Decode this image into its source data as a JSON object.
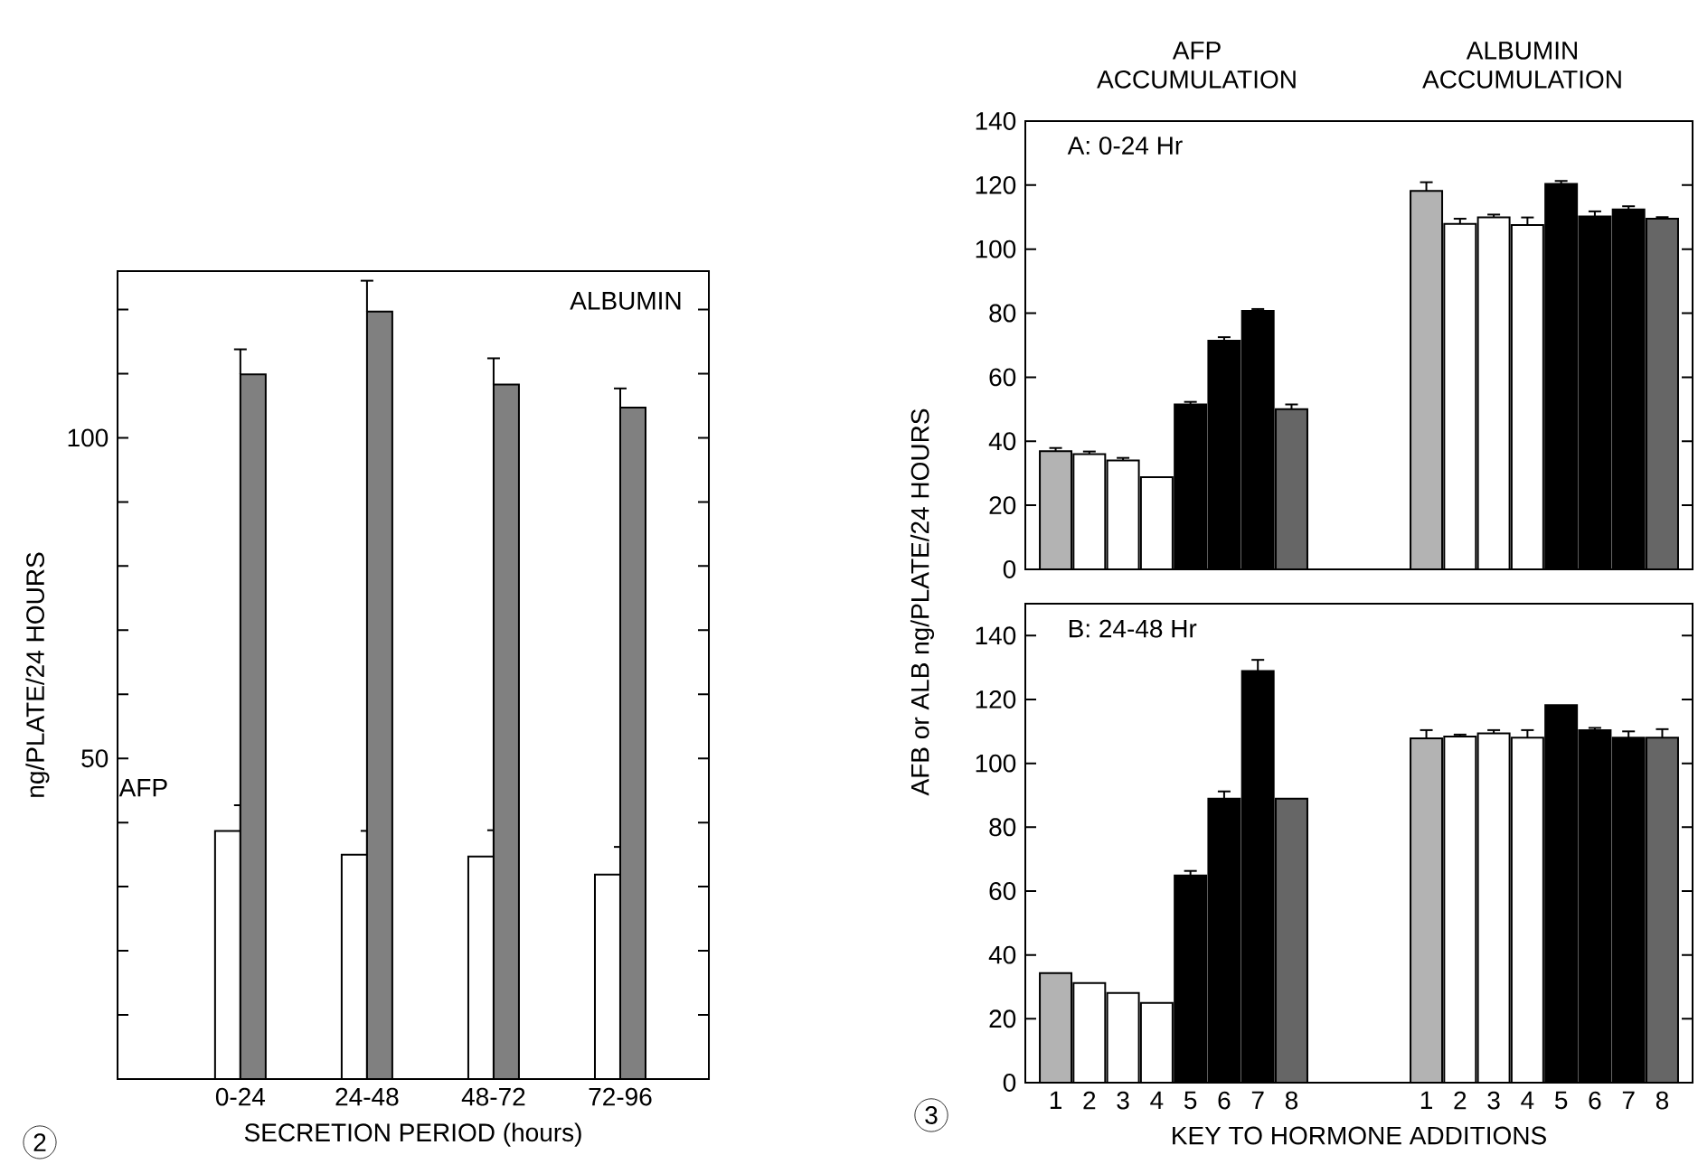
{
  "chart_data": [
    {
      "type": "bar",
      "ylabel": "ng/PLATE/24 HOURS",
      "xlabel": "SECRETION PERIOD (hours)",
      "categories": [
        "0-24",
        "24-48",
        "48-72",
        "72-96"
      ],
      "series": [
        {
          "name": "AFP",
          "color": "#ffffff",
          "values": [
            38.7,
            35.0,
            34.7,
            31.9
          ],
          "errors": [
            4.0,
            3.7,
            4.1,
            4.3
          ]
        },
        {
          "name": "ALBUMIN",
          "color": "#808080",
          "values": [
            109.9,
            119.7,
            108.3,
            104.7
          ],
          "errors": [
            3.9,
            4.8,
            4.1,
            3.0
          ]
        }
      ],
      "ylim": [
        0,
        126
      ],
      "yticks": [
        {
          "value": 10,
          "label": null
        },
        {
          "value": 20,
          "label": null
        },
        {
          "value": 30,
          "label": null
        },
        {
          "value": 40,
          "label": null
        },
        50,
        {
          "value": 60,
          "label": null
        },
        {
          "value": 70,
          "label": null
        },
        {
          "value": 80,
          "label": null
        },
        {
          "value": 90,
          "label": null
        },
        100,
        {
          "value": 110,
          "label": null
        },
        {
          "value": 120,
          "label": null
        }
      ],
      "annotations": [
        "2"
      ]
    },
    {
      "type": "bar",
      "title": "A: 0-24 Hr",
      "categories": [
        "1",
        "2",
        "3",
        "4",
        "5",
        "6",
        "7",
        "8",
        null,
        null,
        null,
        "1",
        "2",
        "3",
        "4",
        "5",
        "6",
        "7",
        "8"
      ],
      "values": [
        36.9,
        36.0,
        34.0,
        28.8,
        51.5,
        71.4,
        80.7,
        50.0,
        null,
        null,
        null,
        118.2,
        107.9,
        109.9,
        107.5,
        120.4,
        110.2,
        112.4,
        109.5
      ],
      "colors": [
        "#b3b3b3",
        "#ffffff",
        "#ffffff",
        "#ffffff",
        "#000000",
        "#000000",
        "#000000",
        "#666666",
        null,
        null,
        null,
        "#b3b3b3",
        "#ffffff",
        "#ffffff",
        "#ffffff",
        "#000000",
        "#000000",
        "#000000",
        "#666666"
      ],
      "errors": [
        1.0,
        0.8,
        0.8,
        null,
        0.8,
        1.1,
        0.6,
        1.5,
        null,
        null,
        null,
        2.7,
        1.6,
        0.9,
        2.4,
        0.9,
        1.6,
        1.0,
        0.5
      ],
      "ylim": [
        0,
        140
      ],
      "yticks": [
        0,
        20,
        40,
        60,
        80,
        100,
        120,
        140
      ],
      "tick_labels": "y",
      "annotations": [
        "AFP ACCUMULATION",
        "ALBUMIN ACCUMULATION"
      ]
    },
    {
      "type": "bar",
      "title": "B: 24-48 Hr",
      "xlabel": "KEY TO HORMONE ADDITIONS",
      "ylabel": "AFB or ALB ng/PLATE/24 HOURS",
      "categories": [
        "1",
        "2",
        "3",
        "4",
        "5",
        "6",
        "7",
        "8",
        null,
        null,
        null,
        "1",
        "2",
        "3",
        "4",
        "5",
        "6",
        "7",
        "8"
      ],
      "values": [
        34.3,
        31.2,
        28.1,
        25.0,
        64.9,
        88.9,
        128.9,
        88.9,
        null,
        null,
        null,
        107.8,
        108.4,
        109.4,
        108.0,
        118.2,
        110.4,
        108.0,
        108.0
      ],
      "colors": [
        "#b3b3b3",
        "#ffffff",
        "#ffffff",
        "#ffffff",
        "#000000",
        "#000000",
        "#000000",
        "#666666",
        null,
        null,
        null,
        "#b3b3b3",
        "#ffffff",
        "#ffffff",
        "#ffffff",
        "#000000",
        "#000000",
        "#000000",
        "#666666"
      ],
      "errors": [
        null,
        null,
        null,
        null,
        1.4,
        2.3,
        3.5,
        null,
        null,
        null,
        null,
        2.6,
        0.6,
        1.0,
        2.4,
        null,
        0.7,
        2.0,
        2.7
      ],
      "ylim": [
        0,
        150
      ],
      "yticks": [
        0,
        20,
        40,
        60,
        80,
        100,
        120,
        140
      ],
      "annotations": [
        "3"
      ]
    }
  ]
}
